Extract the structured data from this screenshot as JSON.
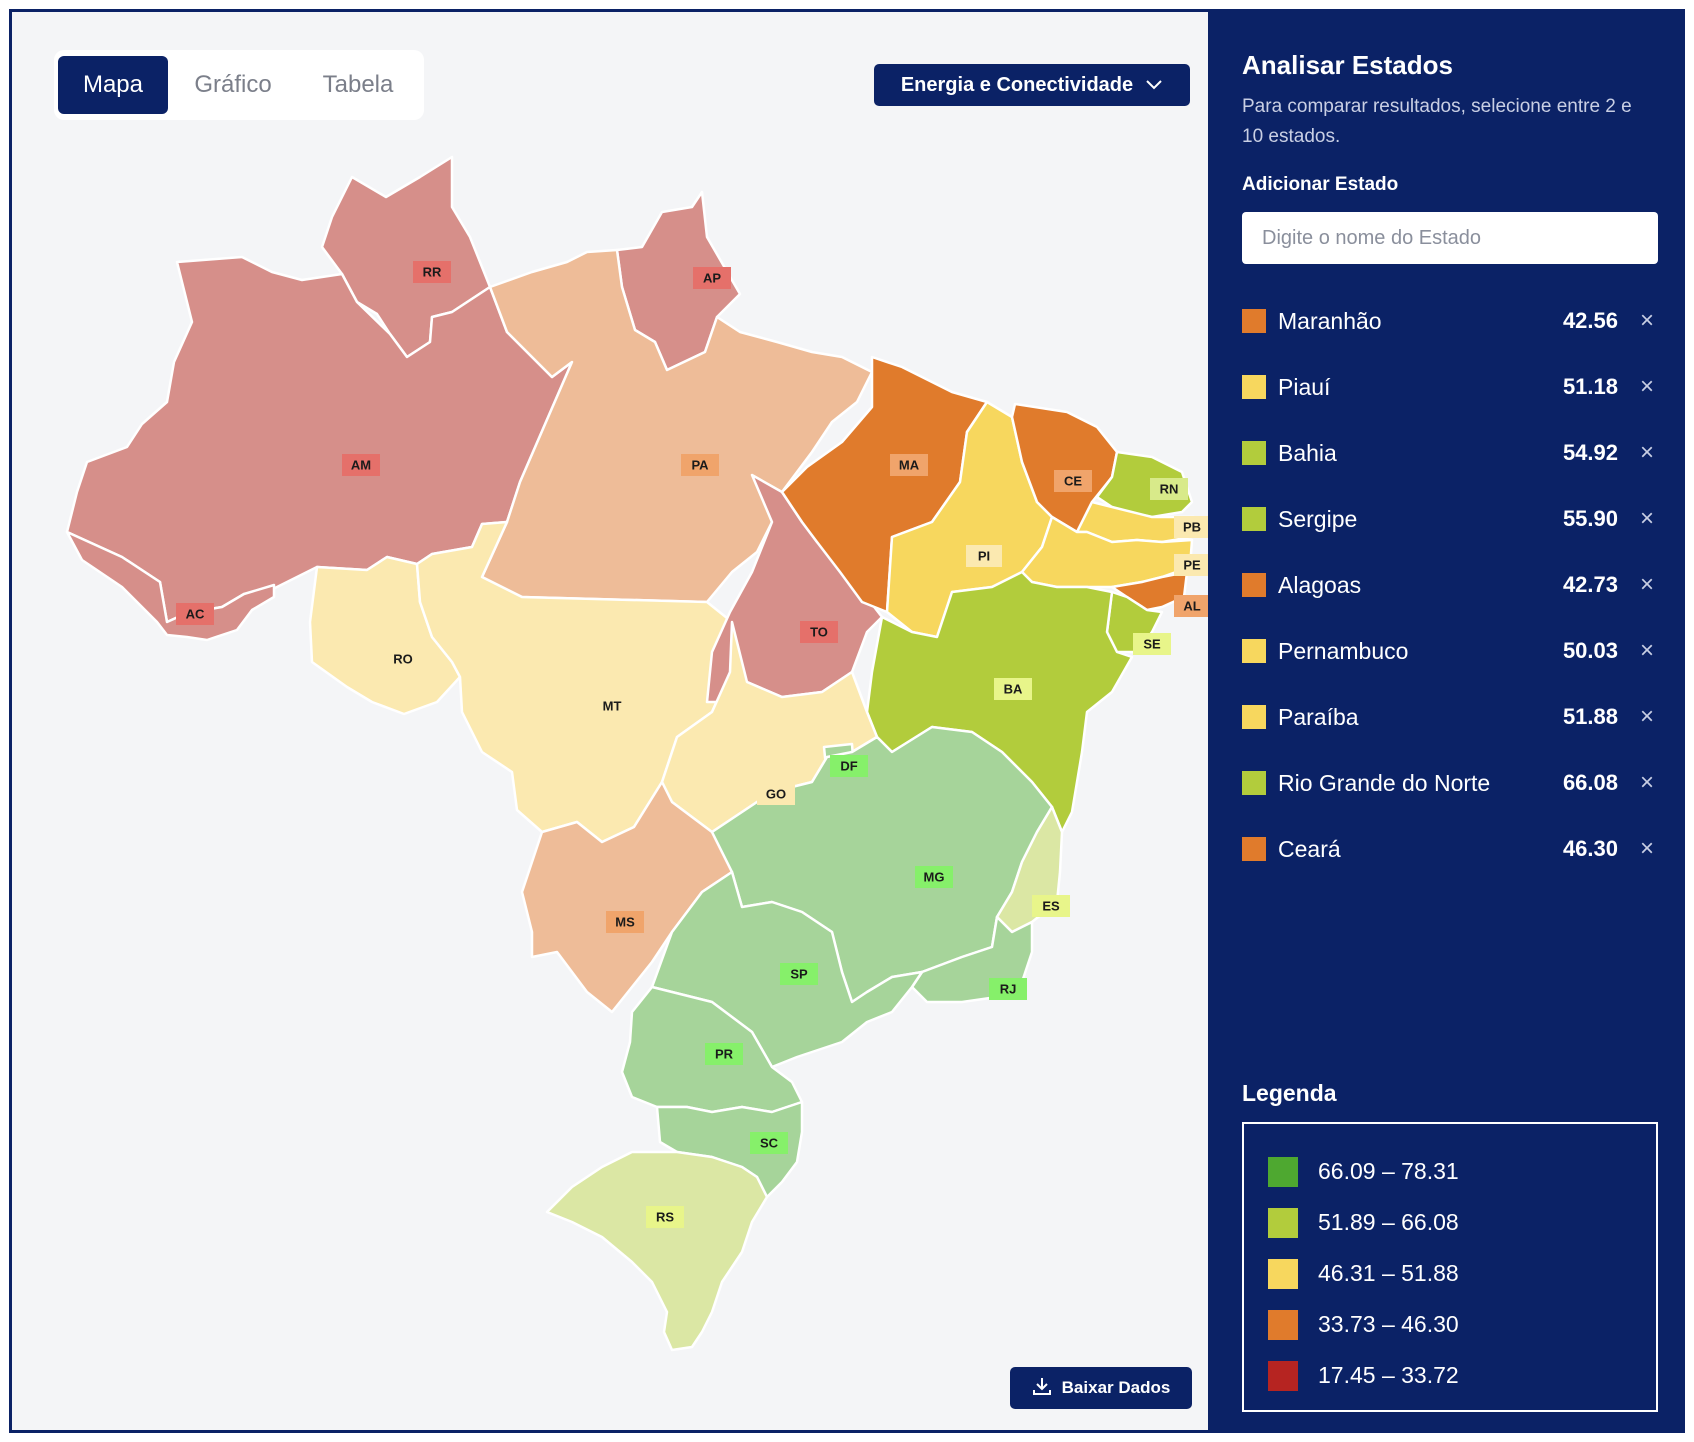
{
  "tabs": [
    {
      "label": "Mapa",
      "active": true
    },
    {
      "label": "Gráfico",
      "active": false
    },
    {
      "label": "Tabela",
      "active": false
    }
  ],
  "category": {
    "label": "Energia e Conectividade",
    "icon": "chevron-down-icon"
  },
  "download": {
    "label": "Baixar Dados",
    "icon": "download-icon"
  },
  "panel": {
    "title": "Analisar Estados",
    "subtitle": "Para comparar resultados, selecione entre 2 e 10 estados.",
    "add_label": "Adicionar Estado",
    "search_placeholder": "Digite o nome do Estado",
    "remove_icon": "close-icon",
    "selected": [
      {
        "name": "Maranhão",
        "value": "42.56",
        "color": "#e07b2c"
      },
      {
        "name": "Piauí",
        "value": "51.18",
        "color": "#f7d75e"
      },
      {
        "name": "Bahia",
        "value": "54.92",
        "color": "#b2cc3c"
      },
      {
        "name": "Sergipe",
        "value": "55.90",
        "color": "#b2cc3c"
      },
      {
        "name": "Alagoas",
        "value": "42.73",
        "color": "#e07b2c"
      },
      {
        "name": "Pernambuco",
        "value": "50.03",
        "color": "#f7d75e"
      },
      {
        "name": "Paraíba",
        "value": "51.88",
        "color": "#f7d75e"
      },
      {
        "name": "Rio Grande do Norte",
        "value": "66.08",
        "color": "#b2cc3c"
      },
      {
        "name": "Ceará",
        "value": "46.30",
        "color": "#e07b2c"
      }
    ]
  },
  "legend": {
    "title": "Legenda",
    "items": [
      {
        "range": "66.09 – 78.31",
        "color": "#4ea830"
      },
      {
        "range": "51.89 – 66.08",
        "color": "#b2cc3c"
      },
      {
        "range": "46.31 – 51.88",
        "color": "#f7d75e"
      },
      {
        "range": "33.73 – 46.30",
        "color": "#e07b2c"
      },
      {
        "range": "17.45 – 33.72",
        "color": "#b62421"
      }
    ]
  },
  "map": {
    "states": [
      {
        "code": "RR",
        "fill": "#d68f8a",
        "label_bg": "#e5706a"
      },
      {
        "code": "AP",
        "fill": "#d68f8a",
        "label_bg": "#e5706a"
      },
      {
        "code": "AM",
        "fill": "#d68f8a",
        "label_bg": "#e5706a"
      },
      {
        "code": "AC",
        "fill": "#d68f8a",
        "label_bg": "#e5706a"
      },
      {
        "code": "PA",
        "fill": "#eebc98",
        "label_bg": "#f0a46b"
      },
      {
        "code": "RO",
        "fill": "#fbe9b0",
        "label_bg": "#fbe9b0"
      },
      {
        "code": "MT",
        "fill": "#fbe9b0",
        "label_bg": "#fbe9b0"
      },
      {
        "code": "TO",
        "fill": "#d68f8a",
        "label_bg": "#e5706a"
      },
      {
        "code": "MA",
        "fill": "#e07b2c",
        "label_bg": "#f0a46b"
      },
      {
        "code": "PI",
        "fill": "#f7d75e",
        "label_bg": "#fbe9b0"
      },
      {
        "code": "CE",
        "fill": "#e07b2c",
        "label_bg": "#f0a46b"
      },
      {
        "code": "RN",
        "fill": "#b2cc3c",
        "label_bg": "#d8ea8a"
      },
      {
        "code": "PB",
        "fill": "#f7d75e",
        "label_bg": "#fbe9b0"
      },
      {
        "code": "PE",
        "fill": "#f7d75e",
        "label_bg": "#fbe9b0"
      },
      {
        "code": "AL",
        "fill": "#e07b2c",
        "label_bg": "#f0a46b"
      },
      {
        "code": "SE",
        "fill": "#b2cc3c",
        "label_bg": "#e8f58a"
      },
      {
        "code": "BA",
        "fill": "#b2cc3c",
        "label_bg": "#e8f58a"
      },
      {
        "code": "GO",
        "fill": "#fbe9b0",
        "label_bg": "#fbe9b0"
      },
      {
        "code": "DF",
        "fill": "#a6d49a",
        "label_bg": "#86f06a"
      },
      {
        "code": "MS",
        "fill": "#eebc98",
        "label_bg": "#f0a46b"
      },
      {
        "code": "MG",
        "fill": "#a6d49a",
        "label_bg": "#86f06a"
      },
      {
        "code": "ES",
        "fill": "#dbe7a4",
        "label_bg": "#e8f58a"
      },
      {
        "code": "RJ",
        "fill": "#a6d49a",
        "label_bg": "#86f06a"
      },
      {
        "code": "SP",
        "fill": "#a6d49a",
        "label_bg": "#86f06a"
      },
      {
        "code": "PR",
        "fill": "#a6d49a",
        "label_bg": "#86f06a"
      },
      {
        "code": "SC",
        "fill": "#a6d49a",
        "label_bg": "#86f06a"
      },
      {
        "code": "RS",
        "fill": "#dbe7a4",
        "label_bg": "#e8f58a"
      }
    ]
  }
}
